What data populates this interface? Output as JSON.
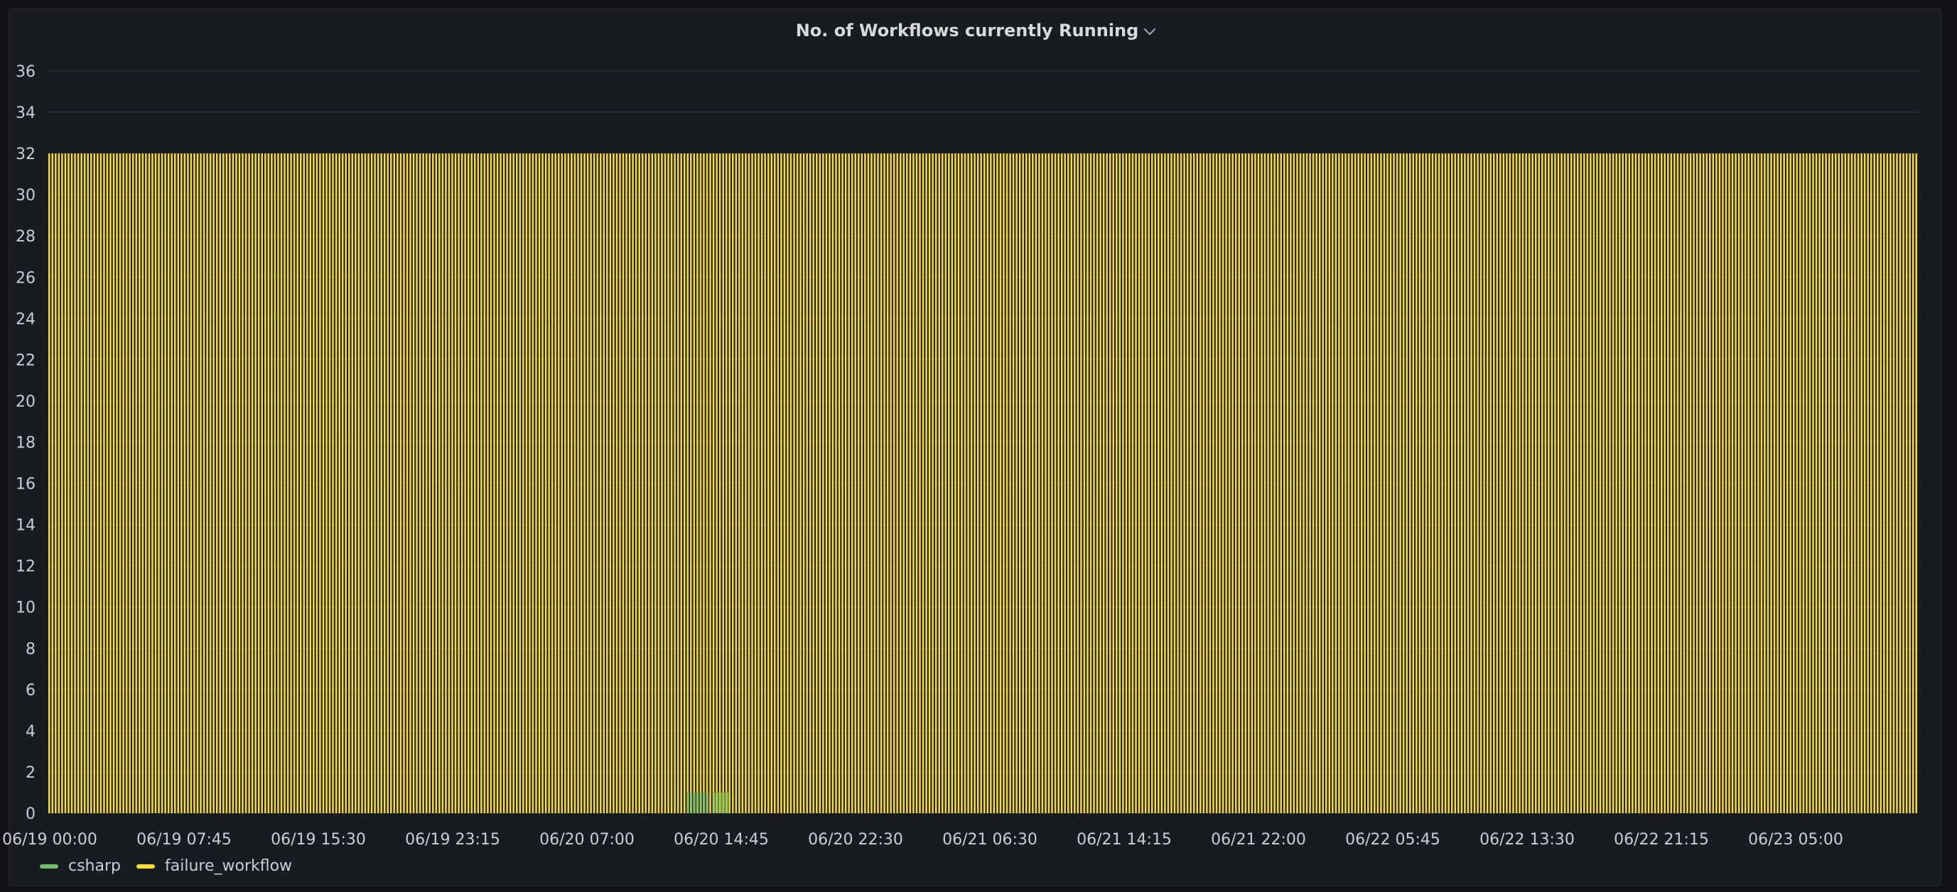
{
  "panel": {
    "title": "No. of Workflows currently Running",
    "menu_icon": "chevron-down-icon"
  },
  "chart_data": {
    "type": "bar",
    "ylim": [
      0,
      36
    ],
    "y_ticks": [
      0,
      2,
      4,
      6,
      8,
      10,
      12,
      14,
      16,
      18,
      20,
      22,
      24,
      26,
      28,
      30,
      32,
      34,
      36
    ],
    "x_range": [
      "06/19 00:00",
      "06/23 10:50"
    ],
    "x_tick_labels": [
      "06/19 00:00",
      "06/19 07:45",
      "06/19 15:30",
      "06/19 23:15",
      "06/20 07:00",
      "06/20 14:45",
      "06/20 22:30",
      "06/21 06:30",
      "06/21 14:15",
      "06/21 22:00",
      "06/22 05:45",
      "06/22 13:30",
      "06/22 21:15",
      "06/23 05:00"
    ],
    "grid": true,
    "legend_placement": "bottom-left",
    "series": [
      {
        "name": "csharp",
        "color": "#73bf69",
        "value": 1,
        "x_ranges": [
          [
            "06/20 12:30",
            "06/20 13:45"
          ],
          [
            "06/20 14:00",
            "06/20 14:50"
          ]
        ]
      },
      {
        "name": "failure_workflow",
        "color": "#fade2a",
        "value": 32,
        "x_ranges": [
          [
            "06/19 00:00",
            "06/23 10:50"
          ]
        ]
      }
    ]
  }
}
